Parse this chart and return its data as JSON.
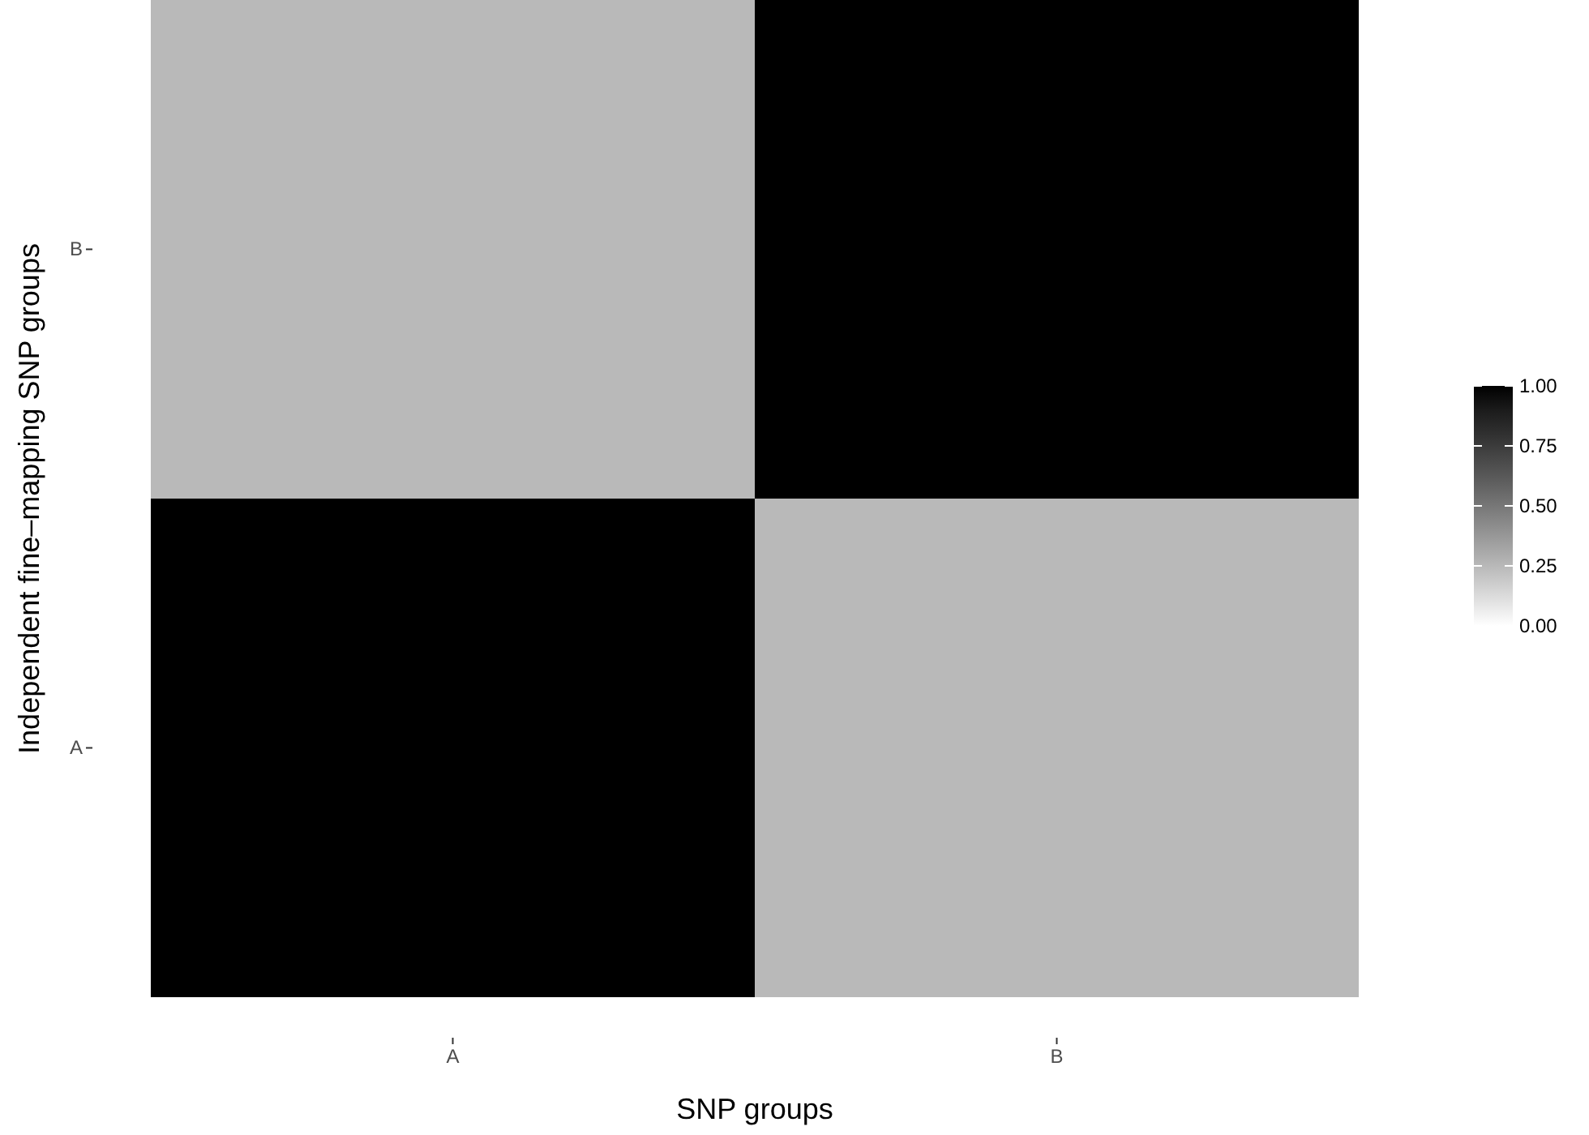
{
  "chart_data": {
    "type": "heatmap",
    "xlabel": "SNP groups",
    "ylabel": "Independent fine–mapping SNP groups",
    "categories": [
      "A",
      "B"
    ],
    "y_categories": [
      "B",
      "A"
    ],
    "cells": [
      [
        0.25,
        1
      ],
      [
        1,
        0.25
      ]
    ],
    "clim": [
      0,
      1
    ],
    "cticks": [
      {
        "value": 0,
        "label": "0.00"
      },
      {
        "value": 0.25,
        "label": "0.25"
      },
      {
        "value": 0.5,
        "label": "0.50"
      },
      {
        "value": 0.75,
        "label": "0.75"
      },
      {
        "value": 1,
        "label": "1.00"
      }
    ]
  }
}
